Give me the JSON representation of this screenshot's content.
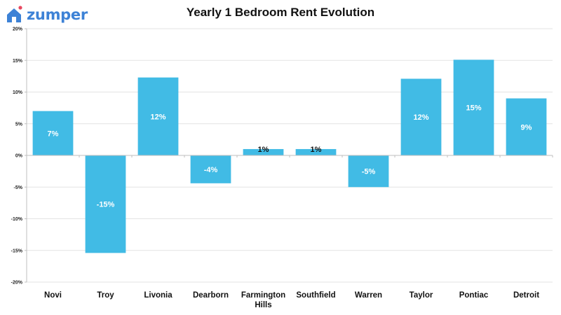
{
  "logo": {
    "text": "zumper",
    "icon": "house-icon",
    "brand_color": "#3d82d6",
    "dot_color": "#e8475f"
  },
  "chart_data": {
    "type": "bar",
    "title": "Yearly 1 Bedroom Rent Evolution",
    "xlabel": "",
    "ylabel": "",
    "categories": [
      "Novi",
      "Troy",
      "Livonia",
      "Dearborn",
      "Farmington Hills",
      "Southfield",
      "Warren",
      "Taylor",
      "Pontiac",
      "Detroit"
    ],
    "values": [
      7,
      -15.4,
      12.3,
      -4.4,
      1,
      1,
      -5,
      12.1,
      15.1,
      9
    ],
    "data_labels": [
      "7%",
      "-15%",
      "12%",
      "-4%",
      "1%",
      "1%",
      "-5%",
      "12%",
      "15%",
      "9%"
    ],
    "ylim": [
      -20,
      20
    ],
    "yticks": [
      -20,
      -15,
      -10,
      -5,
      0,
      5,
      10,
      15,
      20
    ],
    "ytick_labels": [
      "-20%",
      "-15%",
      "-10%",
      "-5%",
      "0%",
      "5%",
      "10%",
      "15%",
      "20%"
    ],
    "grid": true,
    "legend": "none",
    "bar_color": "#41bbe5"
  }
}
